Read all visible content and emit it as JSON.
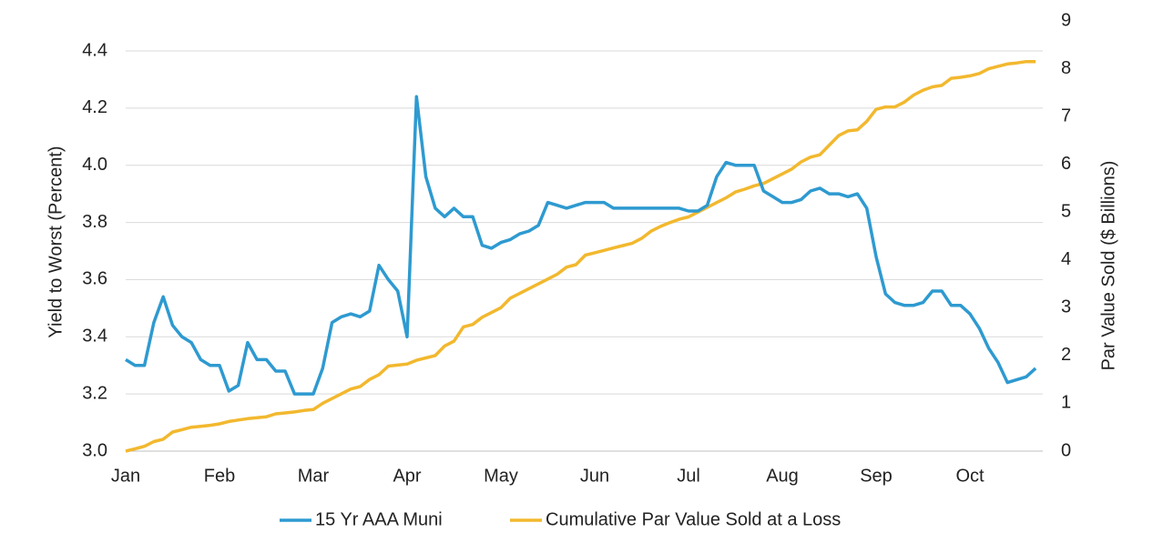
{
  "chart_data": {
    "type": "line",
    "categories": [
      "Jan",
      null,
      null,
      null,
      null,
      null,
      null,
      null,
      null,
      null,
      "Feb",
      null,
      null,
      null,
      null,
      null,
      null,
      null,
      null,
      null,
      "Mar",
      null,
      null,
      null,
      null,
      null,
      null,
      null,
      null,
      null,
      "Apr",
      null,
      null,
      null,
      null,
      null,
      null,
      null,
      null,
      null,
      "May",
      null,
      null,
      null,
      null,
      null,
      null,
      null,
      null,
      null,
      "Jun",
      null,
      null,
      null,
      null,
      null,
      null,
      null,
      null,
      null,
      "Jul",
      null,
      null,
      null,
      null,
      null,
      null,
      null,
      null,
      null,
      "Aug",
      null,
      null,
      null,
      null,
      null,
      null,
      null,
      null,
      null,
      "Sep",
      null,
      null,
      null,
      null,
      null,
      null,
      null,
      null,
      null,
      "Oct",
      null,
      null,
      null,
      null,
      null,
      null,
      null
    ],
    "series": [
      {
        "name": "15 Yr AAA Muni",
        "color": "#2e9ad0",
        "axis": "y",
        "values": [
          3.32,
          3.3,
          3.3,
          3.45,
          3.54,
          3.44,
          3.4,
          3.38,
          3.32,
          3.3,
          3.3,
          3.21,
          3.23,
          3.38,
          3.32,
          3.32,
          3.28,
          3.28,
          3.2,
          3.2,
          3.2,
          3.29,
          3.45,
          3.47,
          3.48,
          3.47,
          3.49,
          3.65,
          3.6,
          3.56,
          3.4,
          4.24,
          3.96,
          3.85,
          3.82,
          3.85,
          3.82,
          3.82,
          3.72,
          3.71,
          3.73,
          3.74,
          3.76,
          3.77,
          3.79,
          3.87,
          3.86,
          3.85,
          3.86,
          3.87,
          3.87,
          3.87,
          3.85,
          3.85,
          3.85,
          3.85,
          3.85,
          3.85,
          3.85,
          3.85,
          3.84,
          3.84,
          3.86,
          3.96,
          4.01,
          4.0,
          4.0,
          4.0,
          3.91,
          3.89,
          3.87,
          3.87,
          3.88,
          3.91,
          3.92,
          3.9,
          3.9,
          3.89,
          3.9,
          3.85,
          3.68,
          3.55,
          3.52,
          3.51,
          3.51,
          3.52,
          3.56,
          3.56,
          3.51,
          3.51,
          3.48,
          3.43,
          3.36,
          3.31,
          3.24,
          3.25,
          3.26,
          3.29
        ]
      },
      {
        "name": "Cumulative Par Value Sold at a Loss",
        "color": "#f2b82e",
        "axis": "y2",
        "values": [
          0.0,
          0.05,
          0.1,
          0.2,
          0.25,
          0.4,
          0.45,
          0.5,
          0.52,
          0.54,
          0.57,
          0.62,
          0.65,
          0.68,
          0.7,
          0.72,
          0.78,
          0.8,
          0.82,
          0.85,
          0.87,
          1.0,
          1.1,
          1.2,
          1.3,
          1.35,
          1.5,
          1.6,
          1.78,
          1.8,
          1.82,
          1.9,
          1.95,
          2.0,
          2.2,
          2.3,
          2.6,
          2.65,
          2.8,
          2.9,
          3.0,
          3.2,
          3.3,
          3.4,
          3.5,
          3.6,
          3.7,
          3.85,
          3.9,
          4.1,
          4.15,
          4.2,
          4.25,
          4.3,
          4.35,
          4.45,
          4.6,
          4.7,
          4.78,
          4.85,
          4.9,
          5.0,
          5.1,
          5.2,
          5.3,
          5.42,
          5.48,
          5.55,
          5.6,
          5.7,
          5.8,
          5.9,
          6.05,
          6.15,
          6.2,
          6.4,
          6.6,
          6.7,
          6.72,
          6.9,
          7.15,
          7.2,
          7.2,
          7.3,
          7.45,
          7.55,
          7.62,
          7.65,
          7.8,
          7.82,
          7.85,
          7.9,
          8.0,
          8.05,
          8.1,
          8.12,
          8.15,
          8.15
        ]
      }
    ],
    "y_label": "Yield to Worst (Percent)",
    "y2_label": "Par Value Sold ($ Billions)",
    "ylim": [
      3.0,
      4.4
    ],
    "yticks": [
      {
        "value": 3.0,
        "label": "3.0"
      },
      {
        "value": 3.2,
        "label": "3.2"
      },
      {
        "value": 3.4,
        "label": "3.4"
      },
      {
        "value": 3.6,
        "label": "3.6"
      },
      {
        "value": 3.8,
        "label": "3.8"
      },
      {
        "value": 4.0,
        "label": "4.0"
      },
      {
        "value": 4.2,
        "label": "4.2"
      },
      {
        "value": 4.4,
        "label": "4.4"
      }
    ],
    "y2lim": [
      0,
      9
    ],
    "y2ticks": [
      0,
      1,
      2,
      3,
      4,
      5,
      6,
      7,
      8,
      9
    ],
    "grid": true,
    "legend": "bottom"
  }
}
